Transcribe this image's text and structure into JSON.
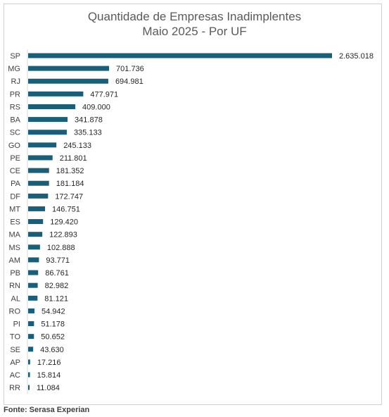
{
  "chart_data": {
    "type": "bar",
    "orientation": "horizontal",
    "title": "Quantidade de Empresas Inadimplentes",
    "subtitle": "Maio 2025 - Por UF",
    "categories": [
      "SP",
      "MG",
      "RJ",
      "PR",
      "RS",
      "BA",
      "SC",
      "GO",
      "PE",
      "CE",
      "PA",
      "DF",
      "MT",
      "ES",
      "MA",
      "MS",
      "AM",
      "PB",
      "RN",
      "AL",
      "RO",
      "PI",
      "TO",
      "SE",
      "AP",
      "AC",
      "RR"
    ],
    "values": [
      2635018,
      701736,
      694981,
      477971,
      409000,
      341878,
      335133,
      245133,
      211801,
      181352,
      181184,
      172747,
      146751,
      129420,
      122893,
      102888,
      93771,
      86761,
      82982,
      81121,
      54942,
      51178,
      50652,
      43630,
      17216,
      15814,
      11084
    ],
    "value_labels": [
      "2.635.018",
      "701.736",
      "694.981",
      "477.971",
      "409.000",
      "341.878",
      "335.133",
      "245.133",
      "211.801",
      "181.352",
      "181.184",
      "172.747",
      "146.751",
      "129.420",
      "122.893",
      "102.888",
      "93.771",
      "86.761",
      "82.982",
      "81.121",
      "54.942",
      "51.178",
      "50.652",
      "43.630",
      "17.216",
      "15.814",
      "11.084"
    ],
    "bar_color": "#1b5e78",
    "xlabel": "",
    "ylabel": "",
    "grid": false,
    "legend": "none"
  },
  "source": "Fonte: Serasa Experian"
}
